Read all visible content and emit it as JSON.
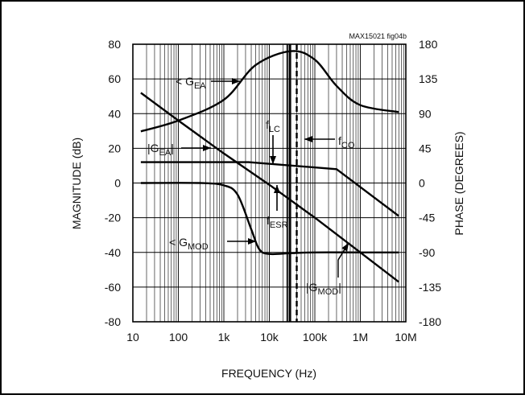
{
  "figure_id": "MAX15021 fig04b",
  "chart_data": {
    "type": "line",
    "xlabel": "FREQUENCY (Hz)",
    "ylabel_left": "MAGNITUDE (dB)",
    "ylabel_right": "PHASE (DEGREES)",
    "x_scale": "log",
    "xlim": [
      10,
      10000000
    ],
    "ylim_left": [
      -80,
      80
    ],
    "ylim_right": [
      -180,
      180
    ],
    "grid": true,
    "x_ticks": [
      {
        "value": 10,
        "label": "10"
      },
      {
        "value": 100,
        "label": "100"
      },
      {
        "value": 1000,
        "label": "1k"
      },
      {
        "value": 10000,
        "label": "10k"
      },
      {
        "value": 100000,
        "label": "100k"
      },
      {
        "value": 1000000,
        "label": "1M"
      },
      {
        "value": 10000000,
        "label": "10M"
      }
    ],
    "y_ticks_left": [
      80,
      60,
      40,
      20,
      0,
      -20,
      -40,
      -60,
      -80
    ],
    "y_ticks_right": [
      180,
      135,
      90,
      45,
      0,
      -45,
      -90,
      -135,
      -180
    ],
    "series": [
      {
        "name": "|GEA|",
        "axis": "left",
        "x": [
          15,
          3500,
          300000,
          7000000
        ],
        "y": [
          12,
          12,
          8,
          -19
        ]
      },
      {
        "name": "|GMOD|",
        "axis": "left",
        "x": [
          15,
          100,
          1000,
          10000,
          100000,
          1000000,
          7000000
        ],
        "y": [
          52,
          36,
          17,
          -1,
          -20,
          -40,
          -57
        ]
      },
      {
        "name": "< GEA",
        "axis": "right",
        "x": [
          15,
          100,
          1000,
          5000,
          30000,
          100000,
          300000,
          1000000,
          7000000
        ],
        "y": [
          67,
          81,
          108,
          153,
          171,
          160,
          126,
          101,
          92
        ]
      },
      {
        "name": "< GMOD",
        "axis": "right",
        "x": [
          15,
          300,
          1000,
          2000,
          4000,
          6000,
          10000,
          30000,
          100000,
          1000000,
          7000000
        ],
        "y": [
          0,
          0,
          -3,
          -15,
          -60,
          -86,
          -92,
          -91,
          -90,
          -90,
          -90
        ]
      }
    ],
    "vlines": [
      {
        "name": "fLC",
        "x": 28000,
        "style": "solid"
      },
      {
        "name": "fCO",
        "x": 40000,
        "style": "dashed"
      }
    ],
    "annotations": [
      {
        "main": "< G",
        "sub": "EA",
        "suffix": ""
      },
      {
        "main": "|G",
        "sub": "EA",
        "suffix": "|"
      },
      {
        "main": "f",
        "sub": "LC",
        "suffix": ""
      },
      {
        "main": "f",
        "sub": "CO",
        "suffix": ""
      },
      {
        "main": "f",
        "sub": "ESR",
        "suffix": ""
      },
      {
        "main": "< G",
        "sub": "MOD",
        "suffix": ""
      },
      {
        "main": "|G",
        "sub": "MOD",
        "suffix": "|"
      }
    ]
  }
}
